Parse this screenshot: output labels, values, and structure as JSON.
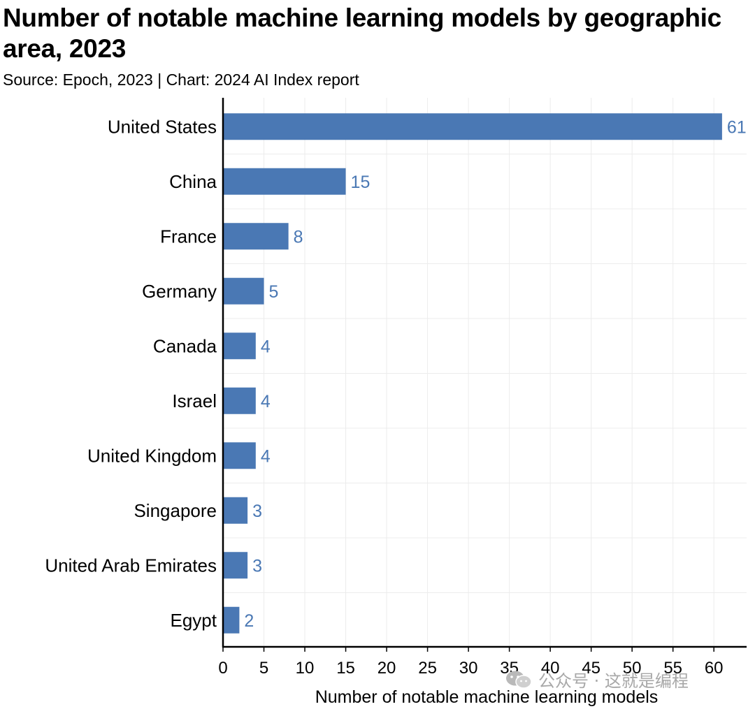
{
  "chart_data": {
    "type": "bar",
    "orientation": "horizontal",
    "title": "Number of notable machine learning models by geographic area, 2023",
    "subtitle": "Source: Epoch, 2023 | Chart: 2024 AI Index report",
    "xlabel": "Number of notable machine learning models",
    "ylabel": "",
    "categories": [
      "United States",
      "China",
      "France",
      "Germany",
      "Canada",
      "Israel",
      "United Kingdom",
      "Singapore",
      "United Arab Emirates",
      "Egypt"
    ],
    "values": [
      61,
      15,
      8,
      5,
      4,
      4,
      4,
      3,
      3,
      2
    ],
    "data_labels": [
      "61",
      "15",
      "8",
      "5",
      "4",
      "4",
      "4",
      "3",
      "3",
      "2"
    ],
    "xlim": [
      0,
      64
    ],
    "xticks": [
      0,
      5,
      10,
      15,
      20,
      25,
      30,
      35,
      40,
      45,
      50,
      55,
      60
    ],
    "grid": true,
    "legend": "none",
    "colors": {
      "bar": "#4a78b4",
      "label": "#4a78b4",
      "grid": "#ececec",
      "axis": "#000000"
    }
  },
  "watermark": {
    "text": "公众号 · 这就是编程",
    "icon": "wechat-icon"
  }
}
